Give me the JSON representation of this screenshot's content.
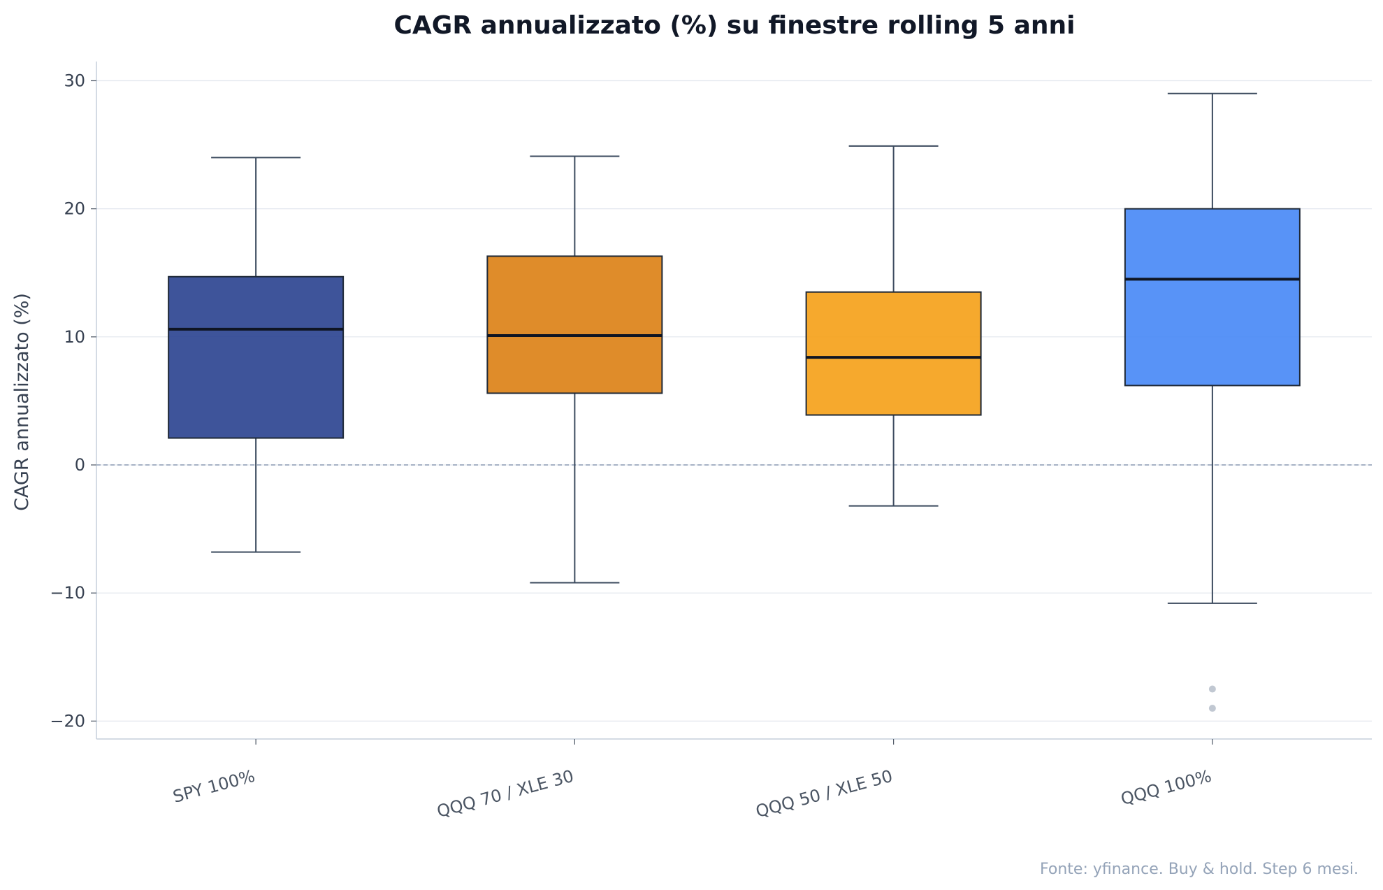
{
  "chart_data": {
    "type": "box",
    "title": "CAGR annualizzato (%) su finestre rolling 5 anni",
    "xlabel": "",
    "ylabel": "CAGR annualizzato (%)",
    "ylim": [
      -21.4,
      31.5
    ],
    "yticks": [
      -20,
      -10,
      0,
      10,
      20,
      30
    ],
    "ytick_labels": [
      "−20",
      "−10",
      "0",
      "10",
      "20",
      "30"
    ],
    "grid": "y",
    "reference_line": 0,
    "categories": [
      "SPY 100%",
      "QQQ 70 / XLE 30",
      "QQQ 50 / XLE 50",
      "QQQ 100%"
    ],
    "boxes": [
      {
        "name": "SPY 100%",
        "whisker_low": -6.8,
        "q1": 2.1,
        "median": 10.6,
        "q3": 14.7,
        "whisker_high": 24.0,
        "outliers": [],
        "color": "#2e4591"
      },
      {
        "name": "QQQ 70 / XLE 30",
        "whisker_low": -9.2,
        "q1": 5.6,
        "median": 10.1,
        "q3": 16.3,
        "whisker_high": 24.1,
        "outliers": [],
        "color": "#dc8218"
      },
      {
        "name": "QQQ 50 / XLE 50",
        "whisker_low": -3.2,
        "q1": 3.9,
        "median": 8.4,
        "q3": 13.5,
        "whisker_high": 24.9,
        "outliers": [],
        "color": "#f5a21b"
      },
      {
        "name": "QQQ 100%",
        "whisker_low": -10.8,
        "q1": 6.2,
        "median": 14.5,
        "q3": 20.0,
        "whisker_high": 29.0,
        "outliers": [
          -17.5,
          -19.0
        ],
        "color": "#4a8af6"
      }
    ],
    "footnote": "Fonte: yfinance. Buy & hold. Step 6 mesi."
  }
}
